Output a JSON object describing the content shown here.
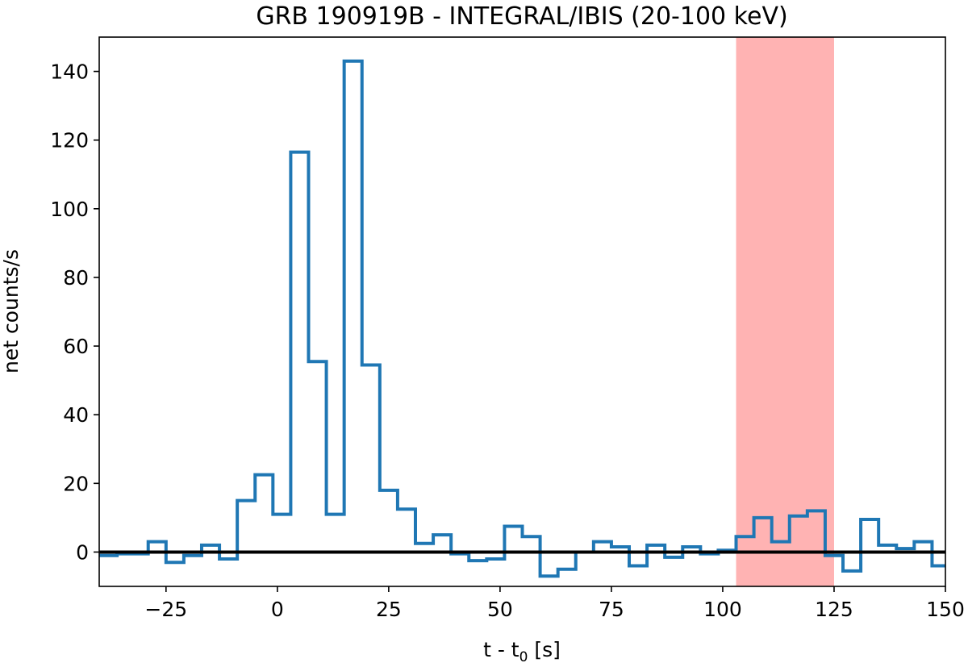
{
  "chart_data": {
    "type": "line",
    "drawstyle": "steps",
    "title": "GRB 190919B - INTEGRAL/IBIS (20-100 keV)",
    "xlabel": "t - t",
    "xlabel_sub": "0",
    "xlabel_suffix": " [s]",
    "ylabel": "net counts/s",
    "xlim": [
      -40,
      150
    ],
    "ylim": [
      -10,
      150
    ],
    "xticks": [
      -25,
      0,
      25,
      50,
      75,
      100,
      125,
      150
    ],
    "xtick_labels": [
      "−25",
      "0",
      "25",
      "50",
      "75",
      "100",
      "125",
      "150"
    ],
    "yticks": [
      0,
      20,
      40,
      60,
      80,
      100,
      120,
      140
    ],
    "ytick_labels": [
      "0",
      "20",
      "40",
      "60",
      "80",
      "100",
      "120",
      "140"
    ],
    "grid": false,
    "series": [
      {
        "color": "#1f77b4",
        "bin_edges": [
          -40,
          -36,
          -33,
          -29,
          -25,
          -21,
          -17,
          -13,
          -9,
          -5,
          -1,
          3,
          7,
          11,
          15,
          19,
          23,
          27,
          31,
          35,
          39,
          43,
          47,
          51,
          55,
          59,
          63,
          67,
          71,
          75,
          79,
          83,
          87,
          91,
          95,
          99,
          103,
          107,
          111,
          115,
          119,
          123,
          127,
          131,
          135,
          139,
          143,
          147,
          150
        ],
        "values": [
          -1,
          -0.5,
          -0.5,
          3,
          -3,
          -1,
          2,
          -2,
          15,
          22.5,
          11,
          116.5,
          55.5,
          11,
          143,
          54.5,
          18,
          12.5,
          2.5,
          5,
          -0.5,
          -2.5,
          -2,
          7.5,
          4.5,
          -7,
          -5,
          0,
          3,
          1.5,
          -4,
          2,
          -1.5,
          1.5,
          -0.5,
          0.5,
          4.5,
          10,
          3,
          10.5,
          12,
          -1,
          -5.5,
          9.5,
          2,
          1,
          3,
          -4
        ]
      }
    ],
    "reference_line": {
      "y": 0,
      "color": "#000000"
    },
    "shaded_region": {
      "x_start": 103,
      "x_end": 125,
      "color": "#ffb3b3"
    }
  }
}
